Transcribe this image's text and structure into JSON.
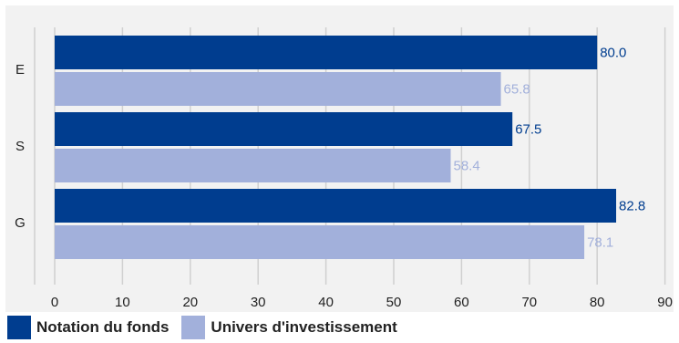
{
  "chart_data": {
    "type": "bar",
    "orientation": "horizontal",
    "categories": [
      "E",
      "S",
      "G"
    ],
    "series": [
      {
        "name": "Notation du fonds",
        "values": [
          80.0,
          67.5,
          82.8
        ],
        "labels": [
          "80.0",
          "67.5",
          "82.8"
        ],
        "color": "#003D8F",
        "label_color": "#003D8F"
      },
      {
        "name": "Univers d'investissement",
        "values": [
          65.8,
          58.4,
          78.1
        ],
        "labels": [
          "65.8",
          "58.4",
          "78.1"
        ],
        "color": "#A2B0DB",
        "label_color": "#A2B0DB"
      }
    ],
    "xlim": [
      0,
      90
    ],
    "x_ticks": [
      "0",
      "10",
      "20",
      "30",
      "40",
      "50",
      "60",
      "70",
      "80",
      "90"
    ],
    "grid": true,
    "legend_position": "bottom-left",
    "background": "#F2F2F2"
  }
}
